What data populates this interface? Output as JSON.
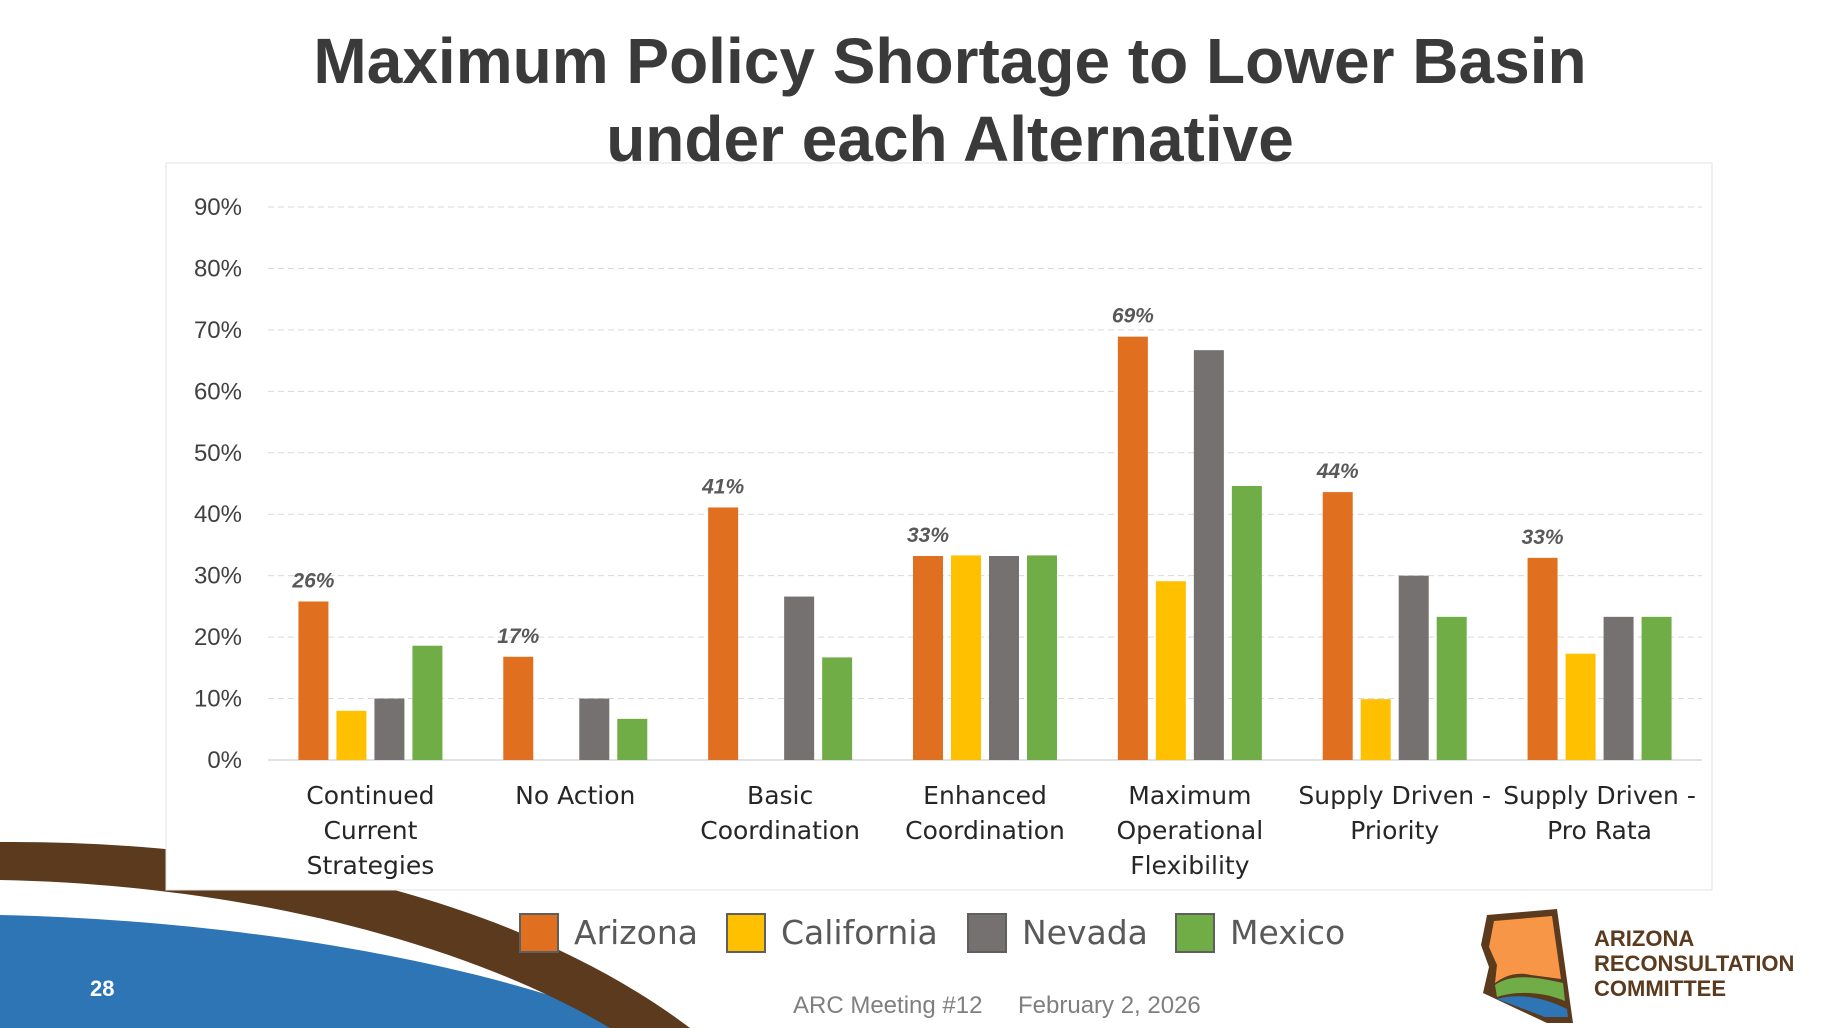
{
  "slide": {
    "title_line1": "Maximum Policy Shortage to Lower Basin",
    "title_line2": "under each Alternative",
    "slide_number": "28",
    "footer_meeting": "ARC Meeting #12",
    "footer_date": "February 2, 2026",
    "logo": {
      "line1": "ARIZONA",
      "line2": "RECONSULTATION",
      "line3": "COMMITTEE",
      "icon": "arizona-state-logo-icon"
    }
  },
  "colors": {
    "arizona": "#e07020",
    "california": "#ffc000",
    "nevada": "#767171",
    "mexico": "#70ad47",
    "brown_band": "#5b3a1e",
    "blue_band": "#2e75b6"
  },
  "chart_data": {
    "type": "bar",
    "title": "Maximum Policy Shortage to Lower Basin under each Alternative",
    "xlabel": "",
    "ylabel": "",
    "ylim": [
      0,
      90
    ],
    "yticks": [
      0,
      10,
      20,
      30,
      40,
      50,
      60,
      70,
      80,
      90
    ],
    "ytick_labels": [
      "0%",
      "10%",
      "20%",
      "30%",
      "40%",
      "50%",
      "60%",
      "70%",
      "80%",
      "90%"
    ],
    "grid": true,
    "legend_position": "bottom",
    "categories": [
      [
        "Continued",
        "Current",
        "Strategies"
      ],
      [
        "No Action"
      ],
      [
        "Basic",
        "Coordination"
      ],
      [
        "Enhanced",
        "Coordination"
      ],
      [
        "Maximum",
        "Operational",
        "Flexibility"
      ],
      [
        "Supply Driven -",
        "Priority"
      ],
      [
        "Supply Driven -",
        "Pro Rata"
      ]
    ],
    "series": [
      {
        "name": "Arizona",
        "color": "#e07020",
        "values": [
          25.8,
          16.8,
          41.1,
          33.2,
          68.9,
          43.6,
          32.9
        ]
      },
      {
        "name": "California",
        "color": "#ffc000",
        "values": [
          8.0,
          0,
          0,
          33.3,
          29.1,
          9.9,
          17.3
        ]
      },
      {
        "name": "Nevada",
        "color": "#767171",
        "values": [
          10.0,
          10.0,
          26.6,
          33.2,
          66.7,
          30.0,
          23.3
        ]
      },
      {
        "name": "Mexico",
        "color": "#70ad47",
        "values": [
          18.6,
          6.7,
          16.7,
          33.3,
          44.6,
          23.3,
          23.3
        ]
      }
    ],
    "data_labels": [
      "26%",
      "17%",
      "41%",
      "33%",
      "69%",
      "44%",
      "33%"
    ]
  }
}
